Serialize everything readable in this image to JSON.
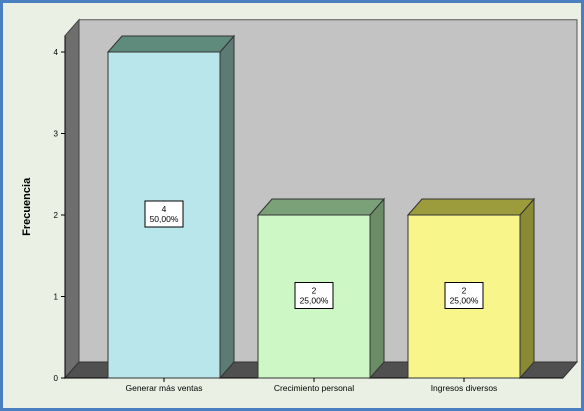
{
  "chart_data": {
    "type": "bar",
    "style": "3d",
    "title": "",
    "xlabel": "",
    "ylabel": "Frecuencia",
    "categories": [
      "Generar más ventas",
      "Crecimiento personal",
      "Ingresos diversos"
    ],
    "values": [
      4,
      2,
      2
    ],
    "data_labels": [
      {
        "count": "4",
        "percent": "50,00%"
      },
      {
        "count": "2",
        "percent": "25,00%"
      },
      {
        "count": "2",
        "percent": "25,00%"
      }
    ],
    "y_ticks": [
      "0",
      "1",
      "2",
      "3",
      "4"
    ],
    "ylim": [
      0,
      4.2
    ],
    "grid": false,
    "legend": "none",
    "colors": {
      "bars": [
        "#b9e6ea",
        "#cdf8c6",
        "#f8f58a"
      ],
      "bar_tops": [
        "#5f8b7c",
        "#7aa178",
        "#9c9c3c"
      ],
      "bar_sides": [
        "#5b7b74",
        "#6c8c68",
        "#8a8a34"
      ],
      "plot_back": "#c3c3c3",
      "plot_wall": "#6e6e6e",
      "plot_floor": "#505050",
      "background": "#eaf1e4",
      "border": "#4a7fc1"
    }
  }
}
